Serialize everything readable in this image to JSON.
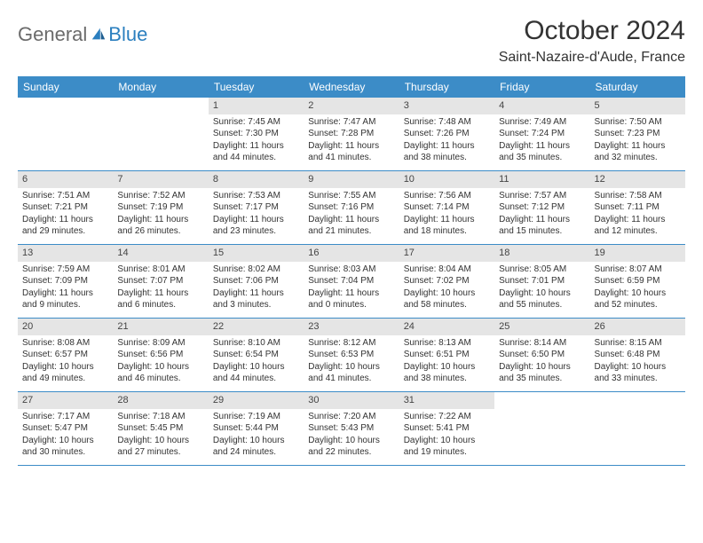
{
  "brand": {
    "name_a": "General",
    "name_b": "Blue"
  },
  "title": "October 2024",
  "location": "Saint-Nazaire-d'Aude, France",
  "colors": {
    "header_bg": "#3c8cc7",
    "header_fg": "#ffffff",
    "daynum_bg": "#e5e5e5",
    "logo_gray": "#6b6b6b",
    "logo_blue": "#2b7fbf",
    "rule": "#3c8cc7"
  },
  "day_headers": [
    "Sunday",
    "Monday",
    "Tuesday",
    "Wednesday",
    "Thursday",
    "Friday",
    "Saturday"
  ],
  "weeks": [
    [
      {
        "day": "",
        "sunrise": "",
        "sunset": "",
        "daylight": ""
      },
      {
        "day": "",
        "sunrise": "",
        "sunset": "",
        "daylight": ""
      },
      {
        "day": "1",
        "sunrise": "Sunrise: 7:45 AM",
        "sunset": "Sunset: 7:30 PM",
        "daylight": "Daylight: 11 hours and 44 minutes."
      },
      {
        "day": "2",
        "sunrise": "Sunrise: 7:47 AM",
        "sunset": "Sunset: 7:28 PM",
        "daylight": "Daylight: 11 hours and 41 minutes."
      },
      {
        "day": "3",
        "sunrise": "Sunrise: 7:48 AM",
        "sunset": "Sunset: 7:26 PM",
        "daylight": "Daylight: 11 hours and 38 minutes."
      },
      {
        "day": "4",
        "sunrise": "Sunrise: 7:49 AM",
        "sunset": "Sunset: 7:24 PM",
        "daylight": "Daylight: 11 hours and 35 minutes."
      },
      {
        "day": "5",
        "sunrise": "Sunrise: 7:50 AM",
        "sunset": "Sunset: 7:23 PM",
        "daylight": "Daylight: 11 hours and 32 minutes."
      }
    ],
    [
      {
        "day": "6",
        "sunrise": "Sunrise: 7:51 AM",
        "sunset": "Sunset: 7:21 PM",
        "daylight": "Daylight: 11 hours and 29 minutes."
      },
      {
        "day": "7",
        "sunrise": "Sunrise: 7:52 AM",
        "sunset": "Sunset: 7:19 PM",
        "daylight": "Daylight: 11 hours and 26 minutes."
      },
      {
        "day": "8",
        "sunrise": "Sunrise: 7:53 AM",
        "sunset": "Sunset: 7:17 PM",
        "daylight": "Daylight: 11 hours and 23 minutes."
      },
      {
        "day": "9",
        "sunrise": "Sunrise: 7:55 AM",
        "sunset": "Sunset: 7:16 PM",
        "daylight": "Daylight: 11 hours and 21 minutes."
      },
      {
        "day": "10",
        "sunrise": "Sunrise: 7:56 AM",
        "sunset": "Sunset: 7:14 PM",
        "daylight": "Daylight: 11 hours and 18 minutes."
      },
      {
        "day": "11",
        "sunrise": "Sunrise: 7:57 AM",
        "sunset": "Sunset: 7:12 PM",
        "daylight": "Daylight: 11 hours and 15 minutes."
      },
      {
        "day": "12",
        "sunrise": "Sunrise: 7:58 AM",
        "sunset": "Sunset: 7:11 PM",
        "daylight": "Daylight: 11 hours and 12 minutes."
      }
    ],
    [
      {
        "day": "13",
        "sunrise": "Sunrise: 7:59 AM",
        "sunset": "Sunset: 7:09 PM",
        "daylight": "Daylight: 11 hours and 9 minutes."
      },
      {
        "day": "14",
        "sunrise": "Sunrise: 8:01 AM",
        "sunset": "Sunset: 7:07 PM",
        "daylight": "Daylight: 11 hours and 6 minutes."
      },
      {
        "day": "15",
        "sunrise": "Sunrise: 8:02 AM",
        "sunset": "Sunset: 7:06 PM",
        "daylight": "Daylight: 11 hours and 3 minutes."
      },
      {
        "day": "16",
        "sunrise": "Sunrise: 8:03 AM",
        "sunset": "Sunset: 7:04 PM",
        "daylight": "Daylight: 11 hours and 0 minutes."
      },
      {
        "day": "17",
        "sunrise": "Sunrise: 8:04 AM",
        "sunset": "Sunset: 7:02 PM",
        "daylight": "Daylight: 10 hours and 58 minutes."
      },
      {
        "day": "18",
        "sunrise": "Sunrise: 8:05 AM",
        "sunset": "Sunset: 7:01 PM",
        "daylight": "Daylight: 10 hours and 55 minutes."
      },
      {
        "day": "19",
        "sunrise": "Sunrise: 8:07 AM",
        "sunset": "Sunset: 6:59 PM",
        "daylight": "Daylight: 10 hours and 52 minutes."
      }
    ],
    [
      {
        "day": "20",
        "sunrise": "Sunrise: 8:08 AM",
        "sunset": "Sunset: 6:57 PM",
        "daylight": "Daylight: 10 hours and 49 minutes."
      },
      {
        "day": "21",
        "sunrise": "Sunrise: 8:09 AM",
        "sunset": "Sunset: 6:56 PM",
        "daylight": "Daylight: 10 hours and 46 minutes."
      },
      {
        "day": "22",
        "sunrise": "Sunrise: 8:10 AM",
        "sunset": "Sunset: 6:54 PM",
        "daylight": "Daylight: 10 hours and 44 minutes."
      },
      {
        "day": "23",
        "sunrise": "Sunrise: 8:12 AM",
        "sunset": "Sunset: 6:53 PM",
        "daylight": "Daylight: 10 hours and 41 minutes."
      },
      {
        "day": "24",
        "sunrise": "Sunrise: 8:13 AM",
        "sunset": "Sunset: 6:51 PM",
        "daylight": "Daylight: 10 hours and 38 minutes."
      },
      {
        "day": "25",
        "sunrise": "Sunrise: 8:14 AM",
        "sunset": "Sunset: 6:50 PM",
        "daylight": "Daylight: 10 hours and 35 minutes."
      },
      {
        "day": "26",
        "sunrise": "Sunrise: 8:15 AM",
        "sunset": "Sunset: 6:48 PM",
        "daylight": "Daylight: 10 hours and 33 minutes."
      }
    ],
    [
      {
        "day": "27",
        "sunrise": "Sunrise: 7:17 AM",
        "sunset": "Sunset: 5:47 PM",
        "daylight": "Daylight: 10 hours and 30 minutes."
      },
      {
        "day": "28",
        "sunrise": "Sunrise: 7:18 AM",
        "sunset": "Sunset: 5:45 PM",
        "daylight": "Daylight: 10 hours and 27 minutes."
      },
      {
        "day": "29",
        "sunrise": "Sunrise: 7:19 AM",
        "sunset": "Sunset: 5:44 PM",
        "daylight": "Daylight: 10 hours and 24 minutes."
      },
      {
        "day": "30",
        "sunrise": "Sunrise: 7:20 AM",
        "sunset": "Sunset: 5:43 PM",
        "daylight": "Daylight: 10 hours and 22 minutes."
      },
      {
        "day": "31",
        "sunrise": "Sunrise: 7:22 AM",
        "sunset": "Sunset: 5:41 PM",
        "daylight": "Daylight: 10 hours and 19 minutes."
      },
      {
        "day": "",
        "sunrise": "",
        "sunset": "",
        "daylight": ""
      },
      {
        "day": "",
        "sunrise": "",
        "sunset": "",
        "daylight": ""
      }
    ]
  ]
}
